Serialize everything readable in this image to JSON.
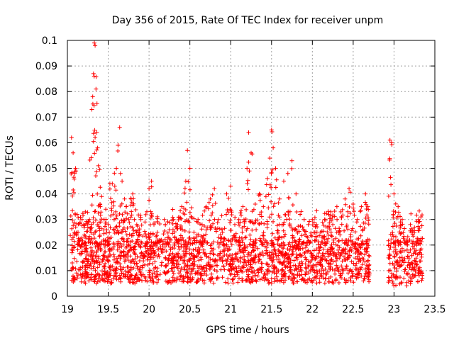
{
  "chart_data": {
    "type": "scatter",
    "title": "Day 356 of 2015, Rate Of TEC Index for receiver unpm",
    "xlabel": "GPS time / hours",
    "ylabel": "ROTI / TECUs",
    "xlim": [
      19,
      23.5
    ],
    "ylim": [
      0,
      0.1
    ],
    "x_ticks": [
      19,
      19.5,
      20,
      20.5,
      21,
      21.5,
      22,
      22.5,
      23,
      23.5
    ],
    "x_tick_labels": [
      "19",
      "19.5",
      "20",
      "20.5",
      "21",
      "21.5",
      "22",
      "22.5",
      "23",
      "23.5"
    ],
    "y_ticks": [
      0,
      0.01,
      0.02,
      0.03,
      0.04,
      0.05,
      0.06,
      0.07,
      0.08,
      0.09,
      0.1
    ],
    "y_tick_labels": [
      "0",
      "0.01",
      "0.02",
      "0.03",
      "0.04",
      "0.05",
      "0.06",
      "0.07",
      "0.08",
      "0.09",
      "0.1"
    ],
    "grid": true,
    "marker": "plus",
    "colors": {
      "series": "#ff0000",
      "grid": "#a0a0a0",
      "axis": "#000000"
    },
    "series": [
      {
        "name": "ROTI",
        "segments": [
          {
            "x_start": 19.05,
            "x_end": 22.7,
            "y_base_min": 0.005,
            "y_base_max": 0.022
          },
          {
            "x_start": 22.93,
            "x_end": 23.35,
            "y_base_min": 0.004,
            "y_base_max": 0.022
          }
        ],
        "x": [
          19.05,
          19.07,
          19.09,
          19.1,
          19.12,
          19.13,
          19.15,
          19.18,
          19.2,
          19.22,
          19.25,
          19.27,
          19.3,
          19.31,
          19.32,
          19.33,
          19.34,
          19.35,
          19.36,
          19.37,
          19.38,
          19.4,
          19.42,
          19.45,
          19.47,
          19.5,
          19.52,
          19.55,
          19.58,
          19.6,
          19.62,
          19.64,
          19.65,
          19.67,
          19.7,
          19.72,
          19.75,
          19.78,
          19.8,
          19.82,
          19.85,
          19.88,
          19.9,
          19.95,
          20.0,
          20.03,
          20.06,
          20.1,
          20.15,
          20.2,
          20.25,
          20.3,
          20.35,
          20.4,
          20.45,
          20.47,
          20.5,
          20.55,
          20.6,
          20.65,
          20.7,
          20.75,
          20.8,
          20.85,
          20.9,
          20.95,
          21.0,
          21.05,
          21.1,
          21.15,
          21.2,
          21.22,
          21.25,
          21.3,
          21.35,
          21.4,
          21.45,
          21.48,
          21.5,
          21.52,
          21.55,
          21.6,
          21.65,
          21.7,
          21.75,
          21.8,
          21.85,
          21.9,
          21.95,
          22.0,
          22.05,
          22.1,
          22.15,
          22.2,
          22.25,
          22.3,
          22.35,
          22.4,
          22.45,
          22.5,
          22.55,
          22.6,
          22.65,
          22.68,
          22.95,
          22.97,
          23.0,
          23.05,
          23.1,
          23.15,
          23.2,
          23.25,
          23.3,
          23.33
        ],
        "y": [
          0.062,
          0.056,
          0.048,
          0.05,
          0.032,
          0.025,
          0.022,
          0.03,
          0.028,
          0.033,
          0.027,
          0.03,
          0.073,
          0.078,
          0.087,
          0.099,
          0.098,
          0.081,
          0.064,
          0.058,
          0.051,
          0.036,
          0.039,
          0.03,
          0.034,
          0.028,
          0.044,
          0.044,
          0.043,
          0.05,
          0.059,
          0.066,
          0.048,
          0.045,
          0.038,
          0.035,
          0.03,
          0.038,
          0.04,
          0.03,
          0.028,
          0.025,
          0.03,
          0.029,
          0.042,
          0.045,
          0.028,
          0.025,
          0.022,
          0.028,
          0.026,
          0.03,
          0.028,
          0.035,
          0.045,
          0.057,
          0.05,
          0.025,
          0.03,
          0.028,
          0.035,
          0.038,
          0.042,
          0.03,
          0.025,
          0.04,
          0.043,
          0.028,
          0.03,
          0.035,
          0.05,
          0.064,
          0.056,
          0.036,
          0.04,
          0.035,
          0.046,
          0.054,
          0.065,
          0.058,
          0.05,
          0.038,
          0.045,
          0.048,
          0.053,
          0.04,
          0.032,
          0.03,
          0.028,
          0.03,
          0.028,
          0.025,
          0.03,
          0.032,
          0.028,
          0.035,
          0.033,
          0.038,
          0.042,
          0.036,
          0.03,
          0.035,
          0.04,
          0.035,
          0.061,
          0.06,
          0.04,
          0.035,
          0.03,
          0.022,
          0.028,
          0.025,
          0.03,
          0.031
        ]
      }
    ]
  }
}
